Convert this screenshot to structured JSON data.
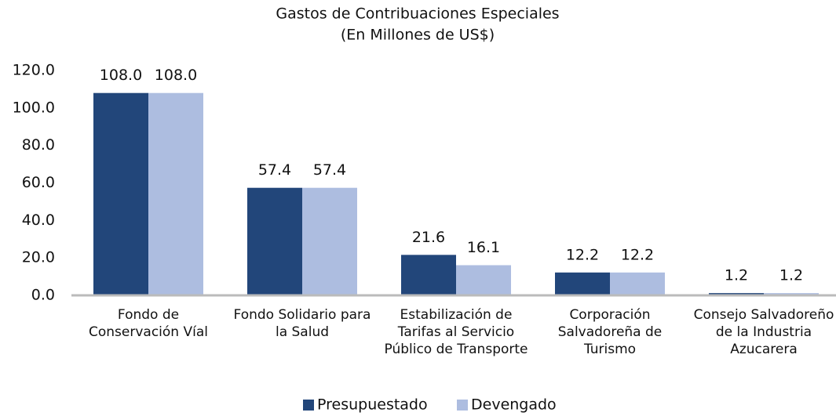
{
  "chart_data": {
    "type": "bar",
    "title": "Gastos de Contribuaciones Especiales",
    "subtitle": "(En Millones de US$)",
    "categories": [
      "Fondo de Conservación Víal",
      "Fondo Solidario para la Salud",
      "Estabilización de Tarifas al Servicio Público de Transporte",
      "Corporación Salvadoreña de Turismo",
      "Consejo Salvadoreño de la Industria Azucarera"
    ],
    "series": [
      {
        "name": "Presupuestado",
        "color": "#22467a",
        "values": [
          108,
          57.4,
          21.6,
          12.2,
          1.2
        ],
        "value_labels": [
          "108.0",
          "57.4",
          "21.6",
          "12.2",
          "1.2"
        ]
      },
      {
        "name": "Devengado",
        "color": "#adbde0",
        "values": [
          108,
          57.4,
          16.1,
          12.2,
          1.2
        ],
        "value_labels": [
          "108.0",
          "57.4",
          "16.1",
          "12.2",
          "1.2"
        ]
      }
    ],
    "ylim": [
      0,
      120
    ],
    "yticks": [
      {
        "value": 0,
        "label": "0.0"
      },
      {
        "value": 20,
        "label": "20.0"
      },
      {
        "value": 40,
        "label": "40.0"
      },
      {
        "value": 60,
        "label": "60.0"
      },
      {
        "value": 80,
        "label": "80.0"
      },
      {
        "value": 100,
        "label": "100.0"
      },
      {
        "value": 120,
        "label": "120.0"
      }
    ],
    "grid": false,
    "legend": "bottom"
  }
}
